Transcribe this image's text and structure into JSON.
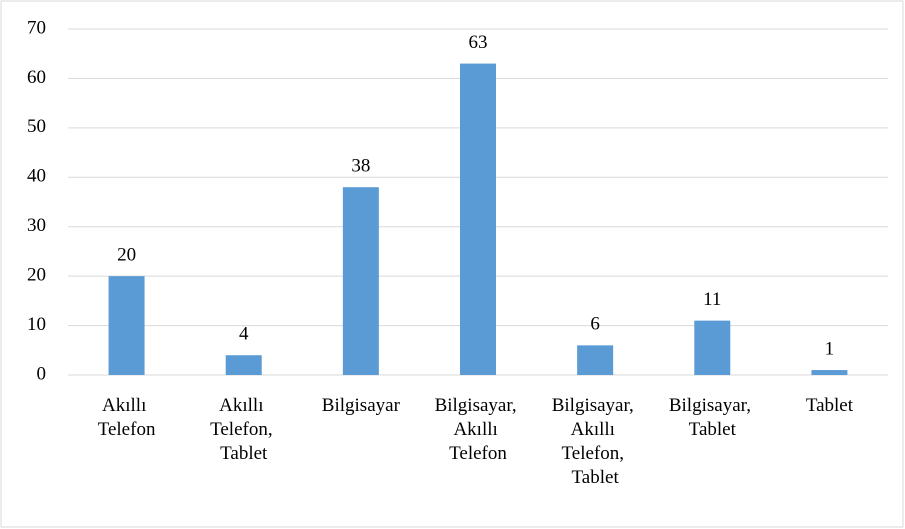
{
  "chart_data": {
    "type": "bar",
    "categories": [
      "Akıllı Telefon",
      "Akıllı Telefon, Tablet",
      "Bilgisayar",
      "Bilgisayar, Akıllı Telefon",
      "Bilgisayar, Akıllı Telefon, Tablet",
      "Bilgisayar, Tablet",
      "Tablet"
    ],
    "values": [
      20,
      4,
      38,
      63,
      6,
      11,
      1
    ],
    "color": "#5b9bd5",
    "ylim": [
      0,
      70
    ],
    "yticks": [
      0,
      10,
      20,
      30,
      40,
      50,
      60,
      70
    ],
    "grid": true
  }
}
